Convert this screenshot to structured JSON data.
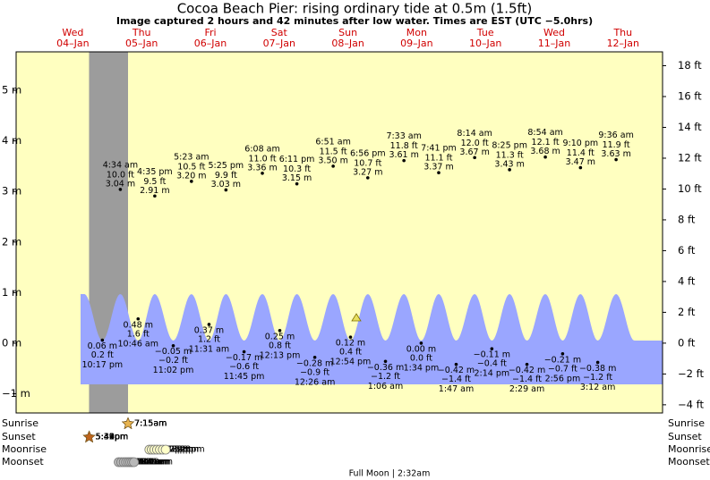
{
  "chart_data": {
    "type": "tide",
    "title": "Cocoa Beach Pier: rising  ordinary tide at 0.5m (1.5ft)",
    "subtitle": "Image captured 2 hours and 42 minutes after low water. Times are EST (UTC −5.0hrs)",
    "weekdays": [
      "Wed",
      "Thu",
      "Fri",
      "Sat",
      "Sun",
      "Mon",
      "Tue",
      "Wed",
      "Thu"
    ],
    "dates": [
      "04–Jan",
      "05–Jan",
      "06–Jan",
      "07–Jan",
      "08–Jan",
      "09–Jan",
      "10–Jan",
      "11–Jan",
      "12–Jan"
    ],
    "ylim": [
      -1.38,
      5.76
    ],
    "yticks": [
      {
        "value": -1,
        "label": "−1 m"
      },
      {
        "value": 0,
        "label": "0 m"
      },
      {
        "value": 1,
        "label": "1 m"
      },
      {
        "value": 2,
        "label": "2 m"
      },
      {
        "value": 3,
        "label": "3 m"
      },
      {
        "value": 4,
        "label": "4 m"
      },
      {
        "value": 5,
        "label": "5 m"
      }
    ],
    "y2lim": [
      -4.53,
      18.9
    ],
    "y2ticks": [
      {
        "value": -4,
        "label": "−4 ft"
      },
      {
        "value": -2,
        "label": "−2 ft"
      },
      {
        "value": 0,
        "label": "0 ft"
      },
      {
        "value": 2,
        "label": "2 ft"
      },
      {
        "value": 4,
        "label": "4 ft"
      },
      {
        "value": 6,
        "label": "6 ft"
      },
      {
        "value": 8,
        "label": "8 ft"
      },
      {
        "value": 10,
        "label": "10 ft"
      },
      {
        "value": 12,
        "label": "12 ft"
      },
      {
        "value": 14,
        "label": "14 ft"
      },
      {
        "value": 16,
        "label": "16 ft"
      },
      {
        "value": 18,
        "label": "18 ft"
      }
    ],
    "tides": {
      "times": [
        "10:17 pm",
        "4:34 am",
        "10:46 am",
        "4:35 pm",
        "11:02 pm",
        "5:23 am",
        "11:31 am",
        "5:25 pm",
        "11:45 pm",
        "6:08 am",
        "12:13 pm",
        "6:11 pm",
        "12:26 am",
        "6:51 am",
        "12:54 pm",
        "6:56 pm",
        "1:06 am",
        "7:33 am",
        "1:34 pm",
        "7:41 pm",
        "1:47 am",
        "8:14 am",
        "2:14 pm",
        "8:25 pm",
        "2:29 am",
        "8:54 am",
        "2:56 pm",
        "9:10 pm",
        "3:12 am",
        "9:36 am"
      ],
      "values": [
        0.06,
        3.04,
        0.48,
        2.91,
        -0.05,
        3.2,
        0.37,
        3.03,
        -0.17,
        3.36,
        0.25,
        3.15,
        -0.28,
        3.5,
        0.12,
        3.27,
        -0.36,
        3.61,
        0.0,
        3.37,
        -0.42,
        3.67,
        -0.11,
        3.43,
        -0.42,
        3.68,
        -0.21,
        3.47,
        -0.38,
        3.63
      ],
      "value_labels": [
        "0.06 m",
        "3.04 m",
        "0.48 m",
        "2.91 m",
        "−0.05 m",
        "3.20 m",
        "0.37 m",
        "3.03 m",
        "−0.17 m",
        "3.36 m",
        "0.25 m",
        "3.15 m",
        "−0.28 m",
        "3.50 m",
        "0.12 m",
        "3.27 m",
        "−0.36 m",
        "3.61 m",
        "0.00 m",
        "3.37 m",
        "−0.42 m",
        "3.67 m",
        "−0.11 m",
        "3.43 m",
        "−0.42 m",
        "3.68 m",
        "−0.21 m",
        "3.47 m",
        "−0.38 m",
        "3.63 m"
      ],
      "ft_labels": [
        "0.2 ft",
        "10.0 ft",
        "1.6 ft",
        "9.5 ft",
        "−0.2 ft",
        "10.5 ft",
        "1.2 ft",
        "9.9 ft",
        "−0.6 ft",
        "11.0 ft",
        "0.8 ft",
        "10.3 ft",
        "−0.9 ft",
        "11.5 ft",
        "0.4 ft",
        "10.7 ft",
        "−1.2 ft",
        "11.8 ft",
        "0.0 ft",
        "11.1 ft",
        "−1.4 ft",
        "12.0 ft",
        "−0.4 ft",
        "11.3 ft",
        "−1.4 ft",
        "12.1 ft",
        "−0.7 ft",
        "11.4 ft",
        "−1.2 ft",
        "11.9 ft"
      ]
    },
    "rows": [
      {
        "label": "Sunrise",
        "times": [
          "7:15am",
          "7:15am",
          "7:15am",
          "7:15am",
          "7:15am",
          "7:15am",
          "7:15am",
          "7:15am"
        ]
      },
      {
        "label": "Sunset",
        "times": [
          "5:39pm",
          "5:39pm",
          "5:40pm",
          "5:41pm",
          "5:42pm",
          "5:42pm",
          "5:43pm",
          "5:44pm"
        ]
      },
      {
        "label": "Moonrise",
        "times": [
          "2:42pm",
          "3:32pm",
          "4:25pm",
          "5:22pm",
          "6:22pm",
          "7:23pm",
          "8:23pm"
        ]
      },
      {
        "label": "Moonset",
        "times": [
          "3:59am",
          "4:52am",
          "5:44am",
          "6:33am",
          "7:19am",
          "8:01am",
          "8:41am",
          "9:19am"
        ]
      }
    ],
    "moon_phase": "Full Moon | 2:32am"
  }
}
